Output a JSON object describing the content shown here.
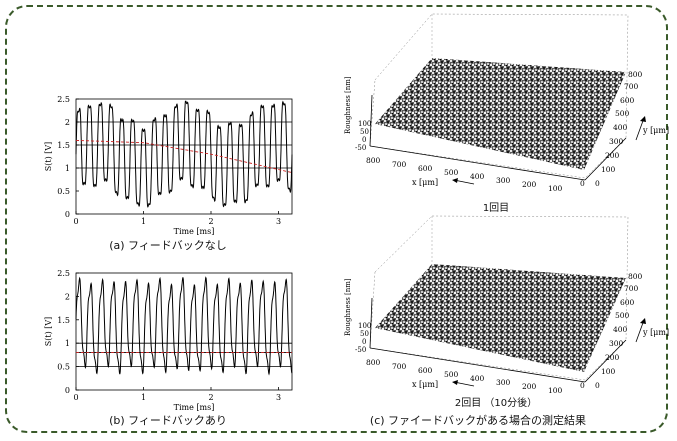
{
  "captions": {
    "a": "(a) フィードバックなし",
    "b": "(b) フィードバックあり",
    "c": "(c) ファイードバックがある場合の測定結果",
    "surface1": "1回目",
    "surface2": "2回目 （10分後）"
  },
  "surface_labels": {
    "z_axis": "Roughness [nm]",
    "x_axis": "x   [μm]",
    "y_axis": "y  [μm]",
    "z_ticks": [
      "100",
      "50",
      "0",
      "-50"
    ],
    "x_ticks": [
      "800",
      "700",
      "600",
      "500",
      "400",
      "300",
      "200",
      "100",
      "0"
    ],
    "y_ticks": [
      "0",
      "100",
      "200",
      "300",
      "400",
      "500",
      "600",
      "700",
      "800"
    ]
  },
  "chart_data": [
    {
      "type": "line",
      "xlabel": "Time [ms]",
      "ylabel": "S(t)    [V]",
      "xlim": [
        0,
        3.2
      ],
      "ylim": [
        0,
        2.5
      ],
      "xticks": [
        "0",
        "1",
        "2",
        "3"
      ],
      "yticks": [
        "0",
        "0.5",
        "1",
        "1.5",
        "2",
        "2.5"
      ],
      "grid_y": [
        1.0,
        1.5,
        2.0
      ],
      "series": [
        {
          "style": "signal",
          "color": "#000000",
          "period_ms": 0.16,
          "min": 0.3,
          "max": 2.3
        },
        {
          "style": "baseline-dashed",
          "color": "#cc2222",
          "x": [
            0,
            1.0,
            2.0,
            3.2
          ],
          "y": [
            1.6,
            1.55,
            1.3,
            0.9
          ]
        }
      ]
    },
    {
      "type": "line",
      "xlabel": "Time [ms]",
      "ylabel": "S(t)    [V]",
      "xlim": [
        0,
        3.2
      ],
      "ylim": [
        0,
        2.5
      ],
      "xticks": [
        "0",
        "1",
        "2",
        "3"
      ],
      "yticks": [
        "0",
        "0.5",
        "1",
        "1.5",
        "2",
        "2.5"
      ],
      "grid_y": [
        0.5,
        0.8,
        1.0
      ],
      "series": [
        {
          "style": "signal",
          "color": "#000000",
          "period_ms": 0.17,
          "min": 0.45,
          "max": 2.3
        },
        {
          "style": "baseline-dashed",
          "color": "#cc2222",
          "x": [
            0,
            3.2
          ],
          "y": [
            0.8,
            0.8
          ]
        }
      ]
    }
  ]
}
